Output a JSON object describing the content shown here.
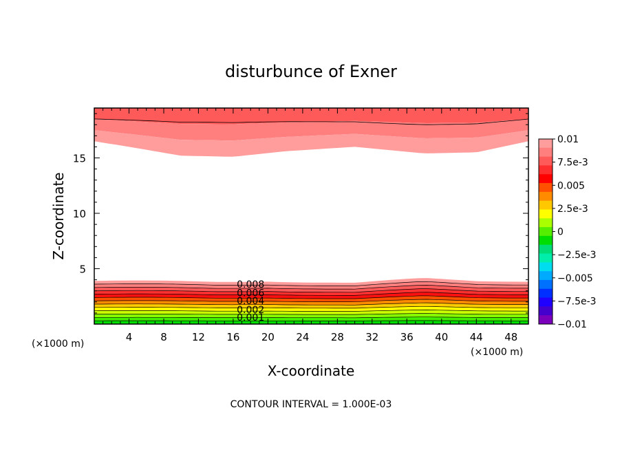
{
  "chart_data": {
    "type": "contour",
    "title": "disturbunce of Exner",
    "xlabel": "X-coordinate",
    "ylabel": "Z-coordinate",
    "x_unit_left": "(×1000 m)",
    "x_unit_right": "(×1000 m)",
    "xlim": [
      0,
      50
    ],
    "ylim": [
      0,
      19.5
    ],
    "x_ticks": [
      4,
      8,
      12,
      16,
      20,
      24,
      28,
      32,
      36,
      40,
      44,
      48
    ],
    "y_ticks": [
      5,
      10,
      15
    ],
    "footer": "CONTOUR INTERVAL = 1.000E-03",
    "contour_interval": 0.001,
    "contour_labels": [
      {
        "text": "0.008",
        "x": 18,
        "z": 3.3
      },
      {
        "text": "0.006",
        "x": 18,
        "z": 2.5
      },
      {
        "text": "0.004",
        "x": 18,
        "z": 1.8
      },
      {
        "text": "0.002",
        "x": 18,
        "z": 1.0
      },
      {
        "text": "0.001",
        "x": 18,
        "z": 0.3
      }
    ],
    "colorbar": {
      "min": -0.01,
      "max": 0.01,
      "labels": [
        "0.01",
        "7.5e-3",
        "0.005",
        "2.5e-3",
        "0",
        "−2.5e-3",
        "−0.005",
        "−7.5e-3",
        "−0.01"
      ],
      "colors": [
        "#ff9c9c",
        "#ff7f7f",
        "#ff5a5a",
        "#ff2e2e",
        "#ff0000",
        "#ff5000",
        "#ff8c00",
        "#ffc800",
        "#ffff00",
        "#aaff00",
        "#55ee00",
        "#00dd00",
        "#00dd77",
        "#00eeaa",
        "#00ddee",
        "#00aaff",
        "#0070ff",
        "#0030ff",
        "#2000ff",
        "#4400cc",
        "#7a00bb"
      ]
    },
    "upper_band": {
      "ztop": 19.5,
      "colors": [
        "#ff5a5a",
        "#ff7f7f",
        "#ff9c9c"
      ],
      "lower_edge_z": [
        [
          0,
          16.5
        ],
        [
          4,
          16.0
        ],
        [
          10,
          15.2
        ],
        [
          16,
          15.1
        ],
        [
          22,
          15.6
        ],
        [
          30,
          16.0
        ],
        [
          38,
          15.4
        ],
        [
          44,
          15.5
        ],
        [
          50,
          16.5
        ]
      ]
    },
    "lower_band": {
      "colors": [
        "#00dd00",
        "#44ee00",
        "#88ff00",
        "#ccff00",
        "#ffff00",
        "#ffcc00",
        "#ff8c00",
        "#ff5000",
        "#ff1010",
        "#ff3030",
        "#ff5a5a",
        "#ff7f7f",
        "#ff9c9c"
      ],
      "top_z": [
        [
          0,
          3.9
        ],
        [
          14,
          3.8
        ],
        [
          20,
          3.9
        ],
        [
          30,
          3.7
        ],
        [
          38,
          4.1
        ],
        [
          44,
          3.9
        ],
        [
          50,
          3.9
        ]
      ]
    },
    "grid": false,
    "colorbar_position": "right"
  }
}
